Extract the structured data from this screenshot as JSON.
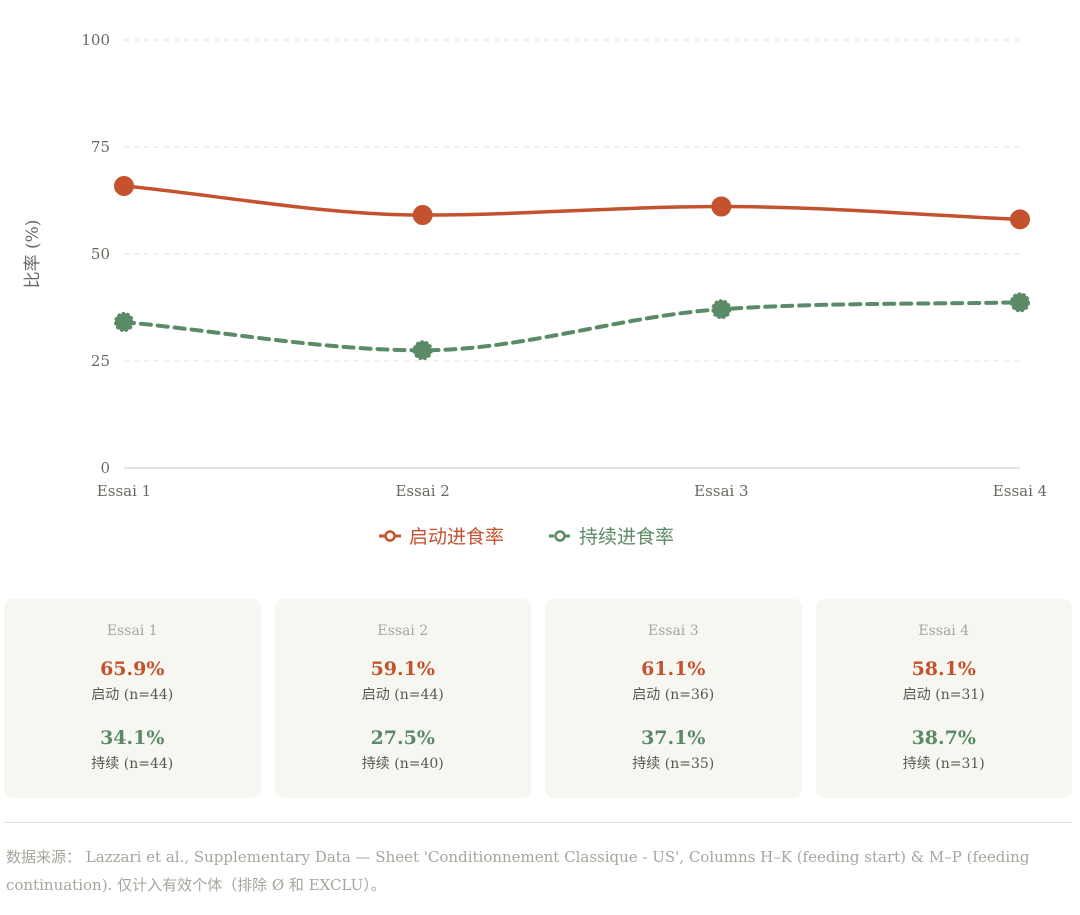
{
  "chart_data": {
    "type": "line",
    "categories": [
      "Essai 1",
      "Essai 2",
      "Essai 3",
      "Essai 4"
    ],
    "series": [
      {
        "name": "启动进食率",
        "values": [
          65.9,
          59.1,
          61.1,
          58.1
        ],
        "color": "#c4522e",
        "style": "solid"
      },
      {
        "name": "持续进食率",
        "values": [
          34.1,
          27.5,
          37.1,
          38.7
        ],
        "color": "#5b8a66",
        "style": "dashed"
      }
    ],
    "ylabel": "比率 (%)",
    "xlabel": "",
    "ylim": [
      0,
      100
    ],
    "yticks": [
      0,
      25,
      50,
      75,
      100
    ],
    "grid": true,
    "legend": "bottom-center"
  },
  "cards": [
    {
      "title": "Essai 1",
      "start_value": "65.9%",
      "start_n": "启动 (n=44)",
      "cont_value": "34.1%",
      "cont_n": "持续 (n=44)"
    },
    {
      "title": "Essai 2",
      "start_value": "59.1%",
      "start_n": "启动 (n=44)",
      "cont_value": "27.5%",
      "cont_n": "持续 (n=40)"
    },
    {
      "title": "Essai 3",
      "start_value": "61.1%",
      "start_n": "启动 (n=36)",
      "cont_value": "37.1%",
      "cont_n": "持续 (n=35)"
    },
    {
      "title": "Essai 4",
      "start_value": "58.1%",
      "start_n": "启动 (n=31)",
      "cont_value": "38.7%",
      "cont_n": "持续 (n=31)"
    }
  ],
  "source_text": "数据来源： Lazzari et al., Supplementary Data — Sheet 'Conditionnement Classique - US', Columns H–K (feeding start) & M–P (feeding continuation). 仅计入有效个体（排除 Ø 和 EXCLU）。"
}
